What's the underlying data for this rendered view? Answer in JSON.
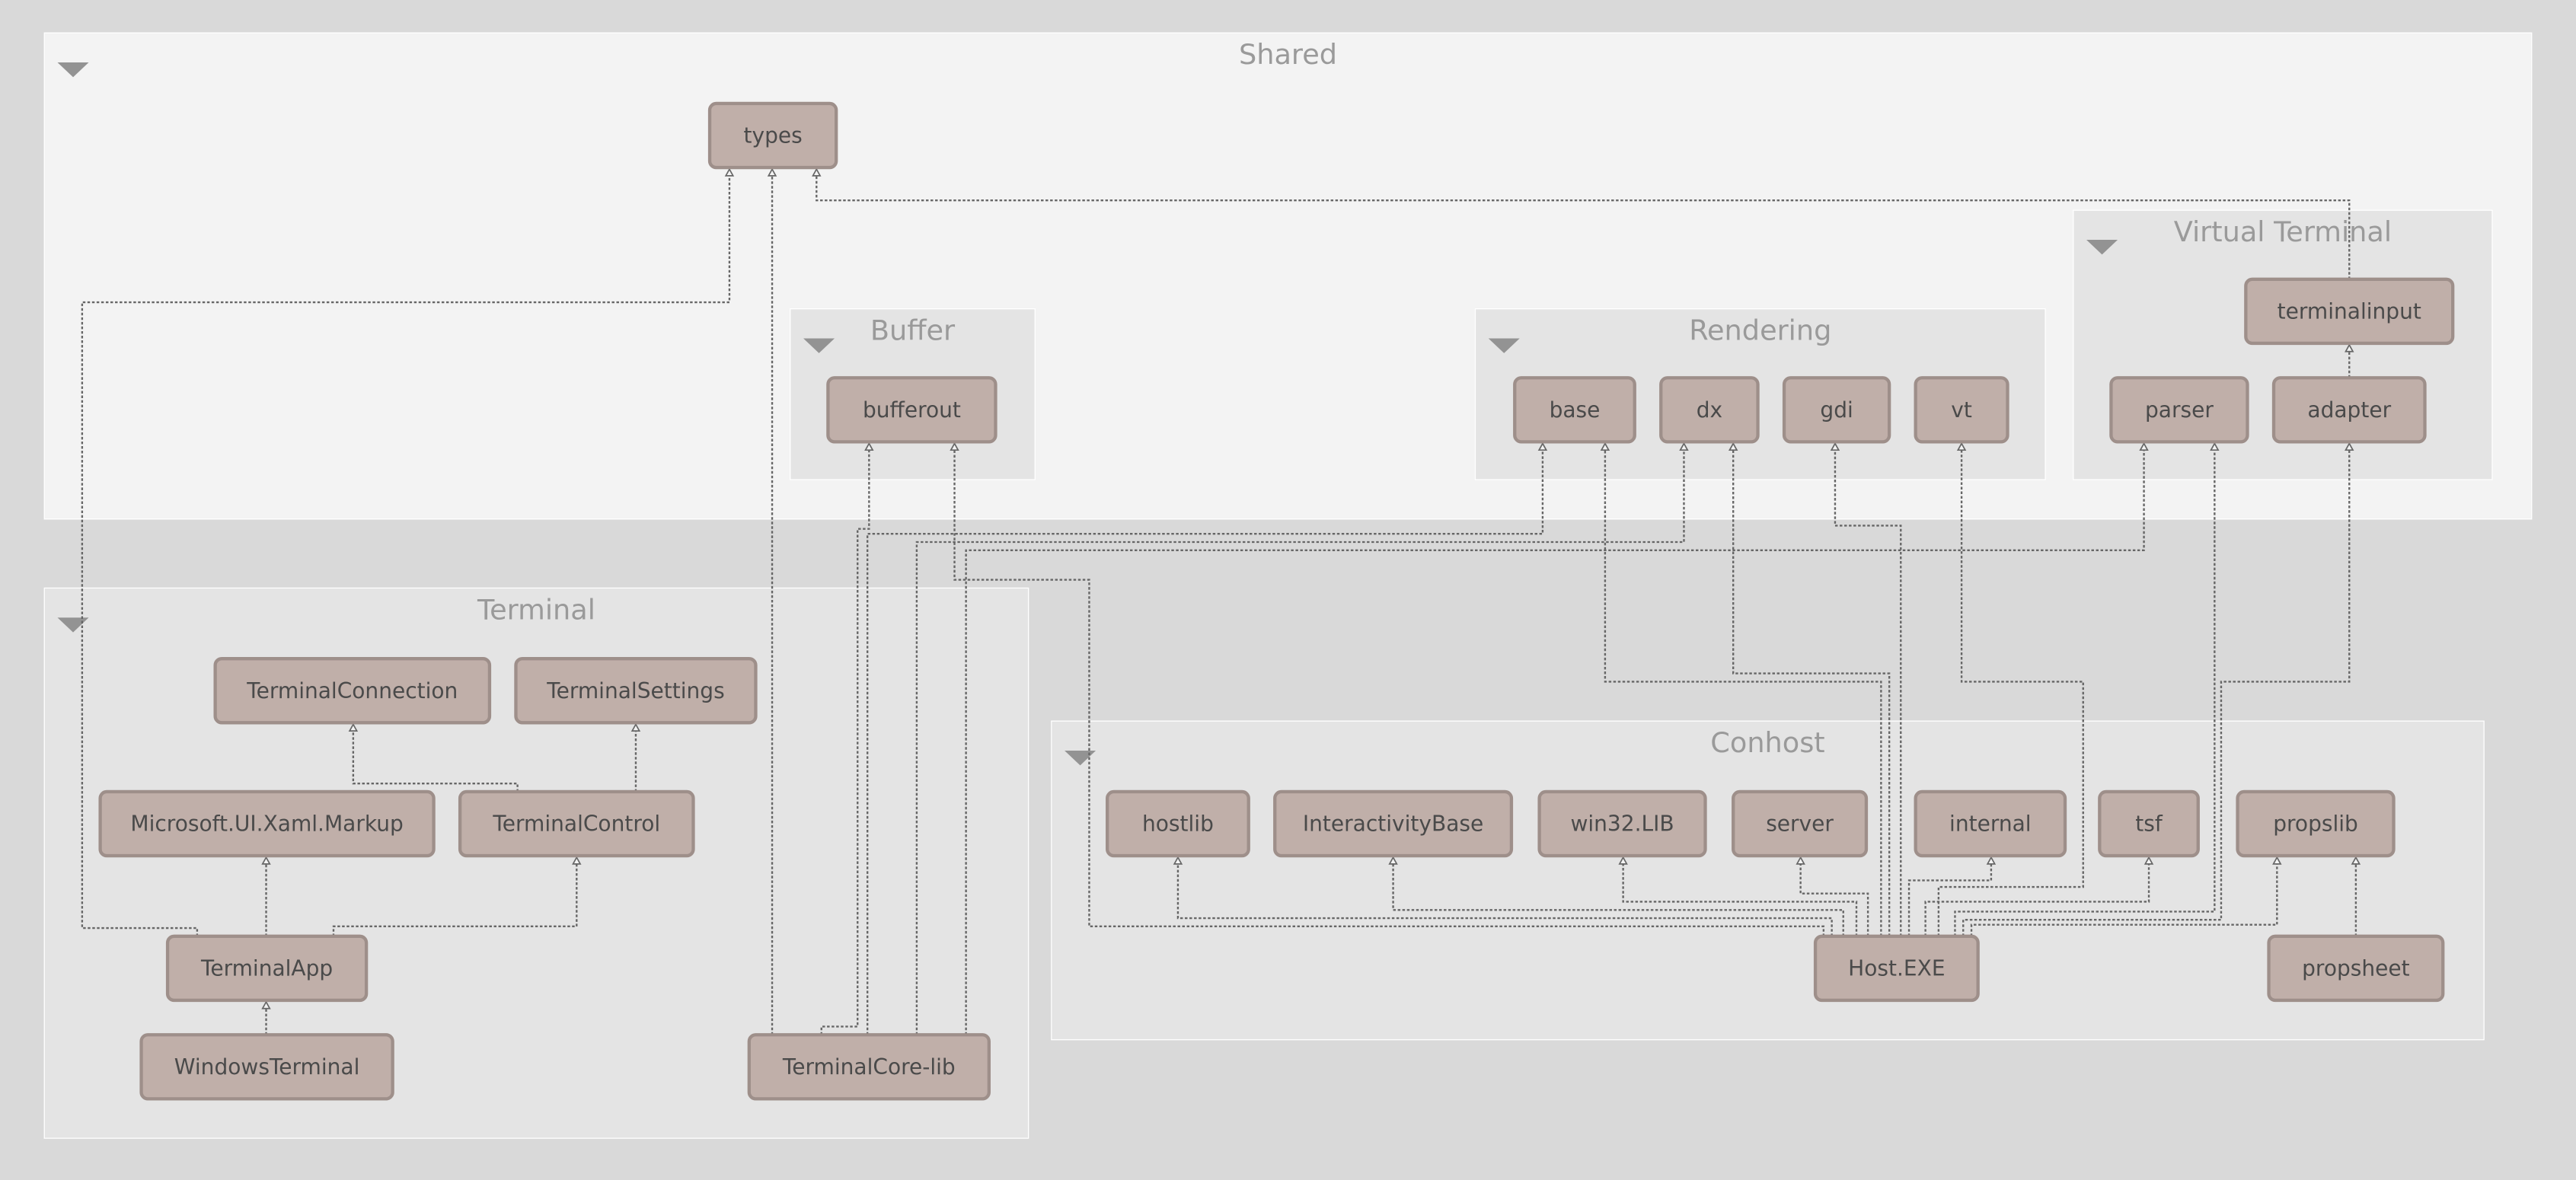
{
  "colors": {
    "background": "#d9d9d9",
    "outer_group": "#f3f3f3",
    "inner_group": "#e4e4e4",
    "node_fill": "#c0afa9",
    "node_border": "#9e8f8a",
    "title": "#9a9a9a",
    "edge": "#666666"
  },
  "groups": [
    {
      "id": "shared",
      "title": "Shared",
      "collapse_icon": "triangle-down-icon"
    },
    {
      "id": "buffer",
      "title": "Buffer",
      "parent": "shared",
      "collapse_icon": "triangle-down-icon"
    },
    {
      "id": "rendering",
      "title": "Rendering",
      "parent": "shared",
      "collapse_icon": "triangle-down-icon"
    },
    {
      "id": "vterm",
      "title": "Virtual Terminal",
      "parent": "shared",
      "collapse_icon": "triangle-down-icon"
    },
    {
      "id": "terminal",
      "title": "Terminal",
      "collapse_icon": "triangle-down-icon"
    },
    {
      "id": "conhost",
      "title": "Conhost",
      "collapse_icon": "triangle-down-icon"
    }
  ],
  "nodes": [
    {
      "id": "types",
      "label": "types",
      "group": "shared"
    },
    {
      "id": "bufferout",
      "label": "bufferout",
      "group": "buffer"
    },
    {
      "id": "base",
      "label": "base",
      "group": "rendering"
    },
    {
      "id": "dx",
      "label": "dx",
      "group": "rendering"
    },
    {
      "id": "gdi",
      "label": "gdi",
      "group": "rendering"
    },
    {
      "id": "vt",
      "label": "vt",
      "group": "rendering"
    },
    {
      "id": "terminalinput",
      "label": "terminalinput",
      "group": "vterm"
    },
    {
      "id": "parser",
      "label": "parser",
      "group": "vterm"
    },
    {
      "id": "adapter",
      "label": "adapter",
      "group": "vterm"
    },
    {
      "id": "TerminalConnection",
      "label": "TerminalConnection",
      "group": "terminal"
    },
    {
      "id": "TerminalSettings",
      "label": "TerminalSettings",
      "group": "terminal"
    },
    {
      "id": "XamlMarkup",
      "label": "Microsoft.UI.Xaml.Markup",
      "group": "terminal"
    },
    {
      "id": "TerminalControl",
      "label": "TerminalControl",
      "group": "terminal"
    },
    {
      "id": "TerminalApp",
      "label": "TerminalApp",
      "group": "terminal"
    },
    {
      "id": "WindowsTerminal",
      "label": "WindowsTerminal",
      "group": "terminal"
    },
    {
      "id": "TerminalCore",
      "label": "TerminalCore-lib",
      "group": "terminal"
    },
    {
      "id": "hostlib",
      "label": "hostlib",
      "group": "conhost"
    },
    {
      "id": "InteractivityBase",
      "label": "InteractivityBase",
      "group": "conhost"
    },
    {
      "id": "win32",
      "label": "win32.LIB",
      "group": "conhost"
    },
    {
      "id": "server",
      "label": "server",
      "group": "conhost"
    },
    {
      "id": "internal",
      "label": "internal",
      "group": "conhost"
    },
    {
      "id": "tsf",
      "label": "tsf",
      "group": "conhost"
    },
    {
      "id": "propslib",
      "label": "propslib",
      "group": "conhost"
    },
    {
      "id": "HostEXE",
      "label": "Host.EXE",
      "group": "conhost"
    },
    {
      "id": "propsheet",
      "label": "propsheet",
      "group": "conhost"
    }
  ],
  "edges": [
    {
      "from": "TerminalApp",
      "to": "types"
    },
    {
      "from": "TerminalCore",
      "to": "types"
    },
    {
      "from": "terminalinput",
      "to": "types"
    },
    {
      "from": "TerminalApp",
      "to": "XamlMarkup"
    },
    {
      "from": "TerminalApp",
      "to": "TerminalControl"
    },
    {
      "from": "TerminalControl",
      "to": "TerminalConnection"
    },
    {
      "from": "TerminalControl",
      "to": "TerminalSettings"
    },
    {
      "from": "WindowsTerminal",
      "to": "TerminalApp"
    },
    {
      "from": "TerminalCore",
      "to": "bufferout"
    },
    {
      "from": "TerminalCore",
      "to": "base"
    },
    {
      "from": "TerminalCore",
      "to": "dx"
    },
    {
      "from": "TerminalCore",
      "to": "parser"
    },
    {
      "from": "HostEXE",
      "to": "bufferout"
    },
    {
      "from": "HostEXE",
      "to": "base"
    },
    {
      "from": "HostEXE",
      "to": "dx"
    },
    {
      "from": "HostEXE",
      "to": "gdi"
    },
    {
      "from": "HostEXE",
      "to": "vt"
    },
    {
      "from": "HostEXE",
      "to": "parser"
    },
    {
      "from": "HostEXE",
      "to": "adapter"
    },
    {
      "from": "HostEXE",
      "to": "hostlib"
    },
    {
      "from": "HostEXE",
      "to": "InteractivityBase"
    },
    {
      "from": "HostEXE",
      "to": "win32"
    },
    {
      "from": "HostEXE",
      "to": "server"
    },
    {
      "from": "HostEXE",
      "to": "internal"
    },
    {
      "from": "HostEXE",
      "to": "tsf"
    },
    {
      "from": "HostEXE",
      "to": "propslib"
    },
    {
      "from": "propsheet",
      "to": "propslib"
    },
    {
      "from": "adapter",
      "to": "terminalinput"
    }
  ]
}
